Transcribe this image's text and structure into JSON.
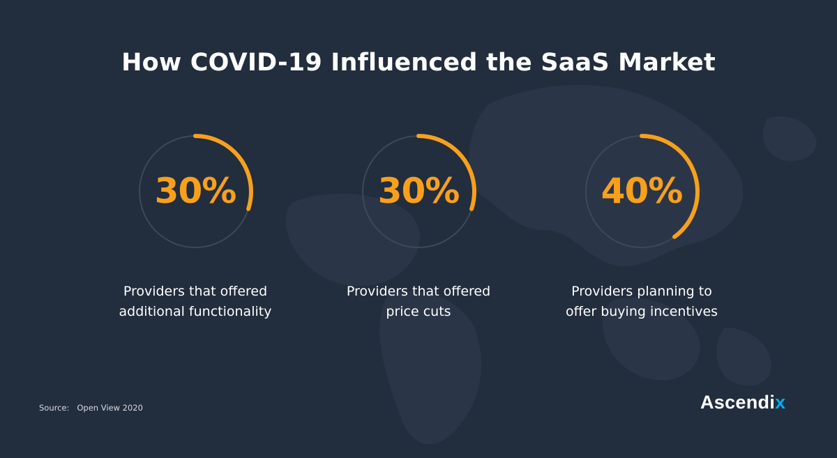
{
  "title": "How COVID-19 Influenced the SaaS Market",
  "chart_data": {
    "type": "radial-progress",
    "items": [
      {
        "value": 30,
        "display": "30%",
        "label_line1": "Providers that offered",
        "label_line2": "additional functionality"
      },
      {
        "value": 30,
        "display": "30%",
        "label_line1": "Providers that offered",
        "label_line2": "price cuts"
      },
      {
        "value": 40,
        "display": "40%",
        "label_line1": "Providers planning to",
        "label_line2": "offer buying incentives"
      }
    ],
    "colors": {
      "arc": "#f8a01c",
      "track": "#3d4858"
    }
  },
  "source": {
    "label": "Source:",
    "value": "Open View 2020"
  },
  "logo": {
    "main": "Ascendi",
    "accent": "x"
  }
}
